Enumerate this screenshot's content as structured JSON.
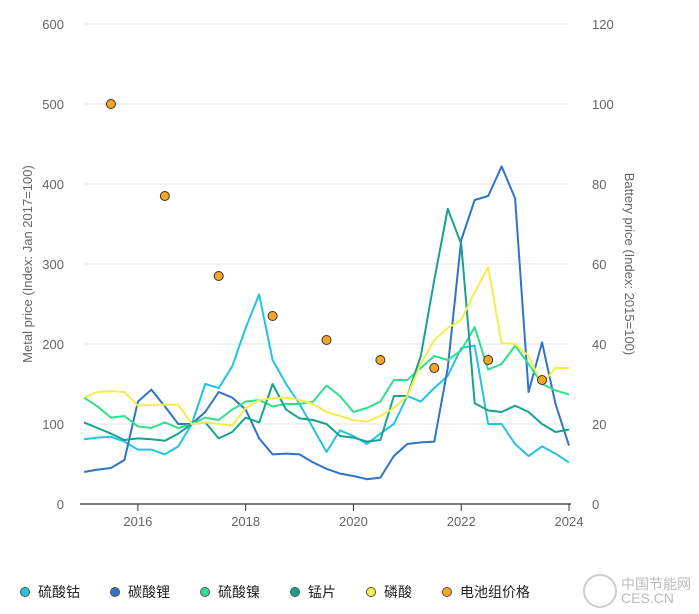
{
  "chart_data": {
    "type": "line",
    "x": [
      2015,
      2015.25,
      2015.5,
      2015.75,
      2016,
      2016.25,
      2016.5,
      2016.75,
      2017,
      2017.25,
      2017.5,
      2017.75,
      2018,
      2018.25,
      2018.5,
      2018.75,
      2019,
      2019.25,
      2019.5,
      2019.75,
      2020,
      2020.25,
      2020.5,
      2020.75,
      2021,
      2021.25,
      2021.5,
      2021.75,
      2022,
      2022.25,
      2022.5,
      2022.75,
      2023,
      2023.25,
      2023.5,
      2023.75,
      2024
    ],
    "xlim": [
      2015,
      2024
    ],
    "xticks": [
      "2016",
      "2018",
      "2020",
      "2022",
      "2024"
    ],
    "ylabel": "Metal price (Index: Jan 2017=100)",
    "ylim": [
      0,
      600
    ],
    "yticks": [
      "0",
      "100",
      "200",
      "300",
      "400",
      "500",
      "600"
    ],
    "y2label": "Battery price (Index: 2015=100)",
    "y2lim": [
      0,
      120
    ],
    "y2ticks": [
      "0",
      "20",
      "40",
      "60",
      "80",
      "100",
      "120"
    ],
    "grid": true,
    "legend_position": "bottom",
    "series": [
      {
        "name": "硫酸钴",
        "color": "#22c3e6",
        "values": [
          81,
          83,
          84,
          78,
          68,
          68,
          62,
          72,
          100,
          150,
          145,
          172,
          220,
          262,
          180,
          150,
          125,
          95,
          65,
          92,
          85,
          75,
          88,
          100,
          135,
          128,
          145,
          160,
          195,
          198,
          100,
          100,
          75,
          60,
          72,
          63,
          52
        ]
      },
      {
        "name": "碳酸锂",
        "color": "#2f74c8",
        "values": [
          40,
          43,
          45,
          55,
          128,
          143,
          122,
          100,
          100,
          115,
          140,
          133,
          118,
          82,
          62,
          63,
          62,
          52,
          44,
          38,
          35,
          31,
          33,
          60,
          75,
          77,
          78,
          170,
          330,
          380,
          385,
          422,
          382,
          140,
          202,
          125,
          73
        ]
      },
      {
        "name": "硫酸镍",
        "color": "#2edf8c",
        "values": [
          133,
          122,
          108,
          110,
          97,
          95,
          102,
          95,
          100,
          108,
          105,
          118,
          128,
          130,
          122,
          125,
          125,
          128,
          148,
          135,
          115,
          120,
          128,
          155,
          155,
          170,
          185,
          180,
          192,
          221,
          168,
          175,
          198,
          175,
          150,
          142,
          137
        ]
      },
      {
        "name": "锰片",
        "color": "#17a38c",
        "values": [
          102,
          95,
          88,
          80,
          82,
          81,
          79,
          88,
          100,
          102,
          82,
          90,
          108,
          102,
          150,
          118,
          107,
          105,
          100,
          85,
          83,
          78,
          80,
          135,
          135,
          185,
          280,
          369,
          325,
          126,
          117,
          115,
          123,
          115,
          100,
          90,
          93
        ]
      },
      {
        "name": "磷酸",
        "color": "#f2ee4c",
        "values": [
          133,
          140,
          141,
          140,
          123,
          124,
          124,
          124,
          100,
          102,
          100,
          98,
          120,
          130,
          132,
          133,
          130,
          125,
          115,
          110,
          105,
          103,
          110,
          120,
          135,
          175,
          205,
          220,
          230,
          265,
          296,
          201,
          200,
          185,
          150,
          170,
          170
        ]
      }
    ],
    "scatter": {
      "name": "电池组价格",
      "color": "#f5a623",
      "axis": "right",
      "x": [
        2015.5,
        2016.5,
        2017.5,
        2018.5,
        2019.5,
        2020.5,
        2021.5,
        2022.5,
        2023.5
      ],
      "values": [
        100,
        77,
        57,
        47,
        41,
        36,
        34,
        36,
        31
      ]
    }
  },
  "watermark": {
    "cn": "中国节能网",
    "en": "CES.CN"
  }
}
